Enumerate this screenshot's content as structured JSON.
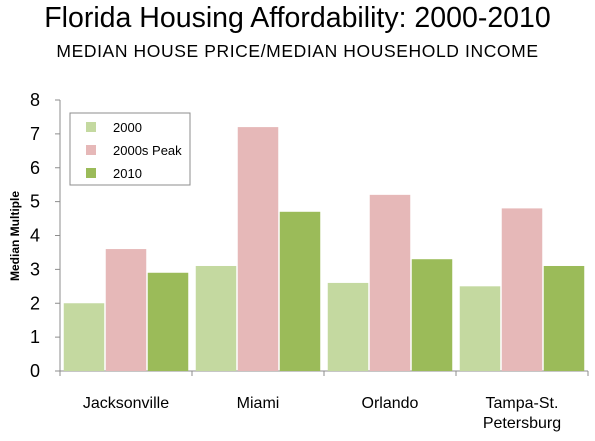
{
  "header": {
    "title": "Florida Housing Affordability: 2000-2010",
    "subtitle": "MEDIAN HOUSE PRICE/MEDIAN HOUSEHOLD INCOME"
  },
  "chart_data": {
    "type": "bar",
    "title": "Florida Housing Affordability: 2000-2010",
    "subtitle": "MEDIAN HOUSE PRICE/MEDIAN HOUSEHOLD INCOME",
    "xlabel": "",
    "ylabel": "Median Multiple",
    "ylim": [
      0,
      8
    ],
    "yticks": [
      0,
      1,
      2,
      3,
      4,
      5,
      6,
      7,
      8
    ],
    "categories": [
      [
        "Jacksonville"
      ],
      [
        "Miami"
      ],
      [
        "Orlando"
      ],
      [
        "Tampa-St.",
        "Petersburg"
      ]
    ],
    "series": [
      {
        "name": "2000",
        "color": "#c4d9a0",
        "values": [
          2.0,
          3.1,
          2.6,
          2.5
        ]
      },
      {
        "name": "2000s Peak",
        "color": "#e6b8b8",
        "values": [
          3.6,
          7.2,
          5.2,
          4.8
        ]
      },
      {
        "name": "2010",
        "color": "#9bbb59",
        "values": [
          2.9,
          4.7,
          3.3,
          3.1
        ]
      }
    ],
    "legend": "top-left",
    "grid": false
  }
}
